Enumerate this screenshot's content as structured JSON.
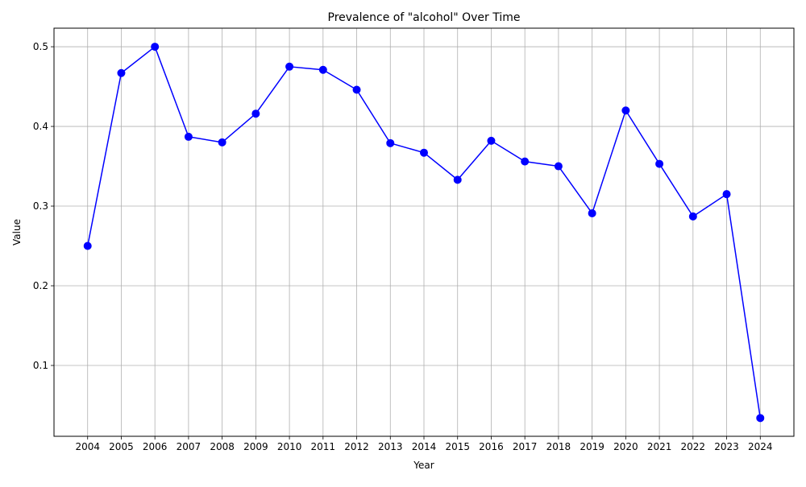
{
  "chart_data": {
    "type": "line",
    "title": "Prevalence of \"alcohol\" Over Time",
    "xlabel": "Year",
    "ylabel": "Value",
    "x": [
      "2004",
      "2005",
      "2006",
      "2007",
      "2008",
      "2009",
      "2010",
      "2011",
      "2012",
      "2013",
      "2014",
      "2015",
      "2016",
      "2017",
      "2018",
      "2019",
      "2020",
      "2021",
      "2022",
      "2023",
      "2024"
    ],
    "series": [
      {
        "values": [
          0.25,
          0.467,
          0.5,
          0.387,
          0.38,
          0.416,
          0.475,
          0.471,
          0.446,
          0.379,
          0.367,
          0.333,
          0.382,
          0.356,
          0.35,
          0.291,
          0.42,
          0.353,
          0.287,
          0.315,
          0.034
        ],
        "color": "#0000ff",
        "marker": "circle"
      }
    ],
    "y_ticks": [
      "0.1",
      "0.2",
      "0.3",
      "0.4",
      "0.5"
    ],
    "ylim": [
      0.0111,
      0.5233
    ],
    "grid": true,
    "legend": "none"
  }
}
